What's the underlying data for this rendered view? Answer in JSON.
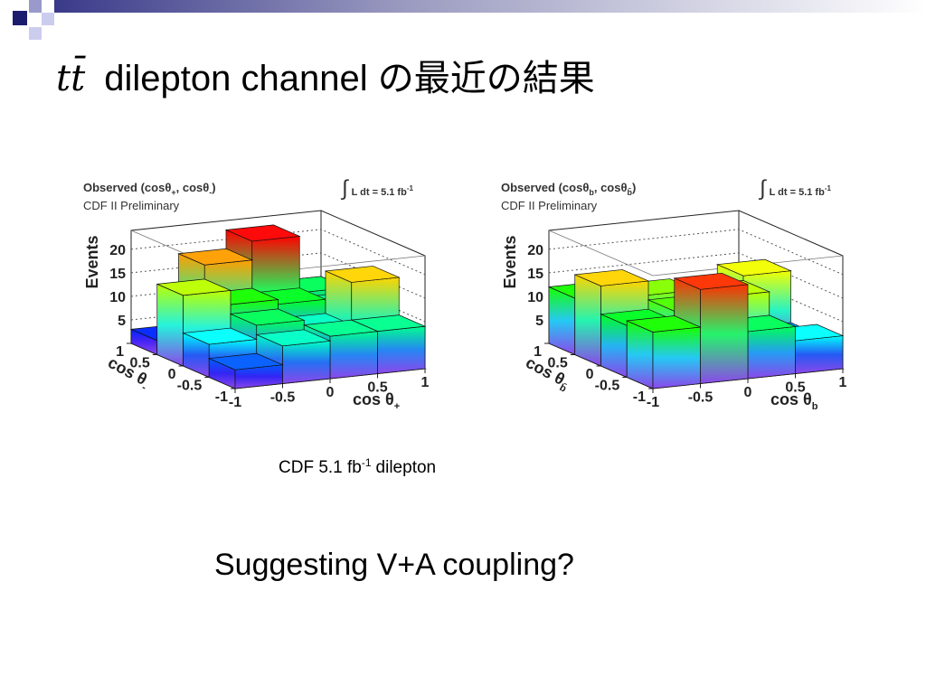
{
  "header": {
    "math": "tt̄",
    "text": "dilepton channel の最近の結果"
  },
  "plots": [
    {
      "type": "lego",
      "title_parts": [
        "Observed (cosθ",
        "+",
        ", cosθ",
        "-",
        ")"
      ],
      "subtitle": "CDF II Preliminary",
      "lumi_parts": [
        "∫",
        "L dt = 5.1 fb",
        "-1"
      ],
      "zlabel": "Events",
      "xlabel_parts": [
        "cos θ",
        "+"
      ],
      "ylabel_parts": [
        "cos θ",
        "-"
      ],
      "xlim": [
        -1,
        1
      ],
      "ylim": [
        -1,
        1
      ],
      "zlim": [
        0,
        24
      ],
      "xticks": [
        -1,
        -0.5,
        0,
        0.5,
        1
      ],
      "yticks": [
        -1,
        -0.5,
        0,
        0.5,
        1
      ],
      "zticks": [
        5,
        10,
        15,
        20
      ],
      "values": [
        [
          4,
          8,
          9,
          9
        ],
        [
          7,
          10,
          8,
          17
        ],
        [
          15,
          12,
          11,
          9
        ],
        [
          3,
          18,
          22,
          10
        ]
      ]
    },
    {
      "type": "lego",
      "title_parts": [
        "Observed (cosθ",
        "b",
        ", cosθ",
        "b̄",
        ")"
      ],
      "subtitle": "CDF II Preliminary",
      "lumi_parts": [
        "∫",
        "L dt = 5.1 fb",
        "-1"
      ],
      "zlabel": "Events",
      "xlabel_parts": [
        "cos θ",
        "b"
      ],
      "ylabel_parts": [
        "cos θ",
        "b̄"
      ],
      "xlim": [
        -1,
        1
      ],
      "ylim": [
        -1,
        1
      ],
      "zlim": [
        0,
        24
      ],
      "xticks": [
        -1,
        -0.5,
        0,
        0.5,
        1
      ],
      "yticks": [
        -1,
        -0.5,
        0,
        0.5,
        1
      ],
      "zticks": [
        5,
        10,
        15,
        20
      ],
      "values": [
        [
          12,
          20,
          10,
          7
        ],
        [
          11,
          13,
          15,
          5
        ],
        [
          17,
          14,
          9,
          16
        ],
        [
          12,
          11,
          9,
          8
        ]
      ]
    }
  ],
  "caption": {
    "text": "CDF 5.1 fb",
    "sup": "-1",
    "after": "dilepton"
  },
  "footer": "Suggesting V+A coupling?"
}
